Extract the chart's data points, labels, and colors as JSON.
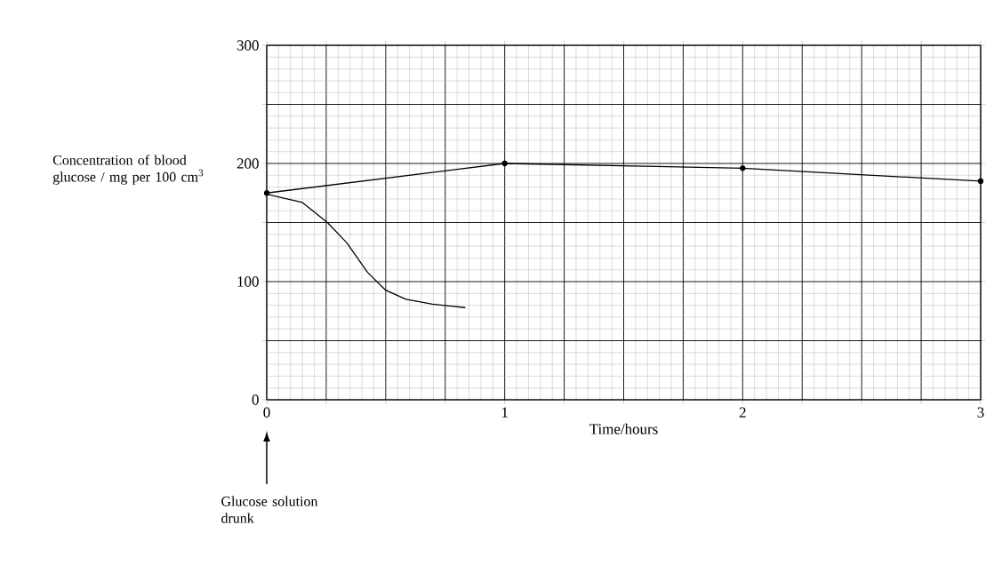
{
  "chart_data": {
    "type": "line",
    "xlabel": "Time/hours",
    "ylabel": "Concentration of blood glucose / mg per 100 cm$^{3}$",
    "x": [
      0,
      1,
      2,
      3
    ],
    "series": [
      {
        "color": "#000000",
        "marker": "circle",
        "values": [
          175,
          200,
          196,
          185
        ]
      },
      {
        "color": "#000000",
        "marker": "none",
        "x": [
          0,
          0.15,
          0.255,
          0.336,
          0.423,
          0.498,
          0.585,
          0.697,
          0.834
        ],
        "values": [
          174,
          167,
          150,
          133,
          108,
          93,
          85,
          81,
          78
        ]
      }
    ],
    "xlim": [
      0,
      3
    ],
    "ylim": [
      0,
      300
    ],
    "xticks": [
      0,
      {
        "value": 0.25,
        "label": null
      },
      {
        "value": 0.5,
        "label": null
      },
      {
        "value": 0.75,
        "label": null
      },
      1,
      {
        "value": 1.25,
        "label": null
      },
      {
        "value": 1.5,
        "label": null
      },
      {
        "value": 1.75,
        "label": null
      },
      2,
      {
        "value": 2.25,
        "label": null
      },
      {
        "value": 2.5,
        "label": null
      },
      {
        "value": 2.75,
        "label": null
      },
      3
    ],
    "yticks": [
      0,
      {
        "value": 50,
        "label": null
      },
      100,
      {
        "value": 150,
        "label": null
      },
      200,
      {
        "value": 250,
        "label": null
      },
      300
    ],
    "grid": true,
    "annotations": [
      "Glucose solution drunk"
    ]
  }
}
